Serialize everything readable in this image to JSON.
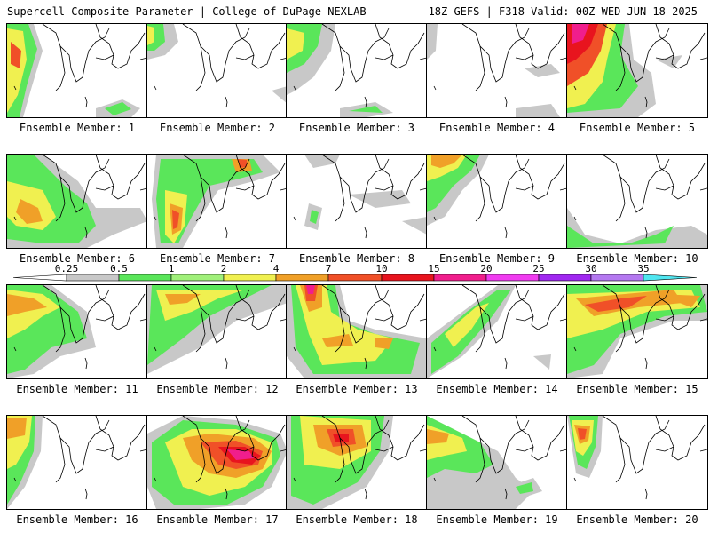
{
  "header": {
    "title_left": "Supercell Composite Parameter | College of DuPage NEXLAB",
    "title_right": "18Z GEFS | F318 Valid: 00Z WED JUN 18 2025"
  },
  "legend": {
    "ticks": [
      "0.25",
      "0.5",
      "1",
      "2",
      "4",
      "7",
      "10",
      "15",
      "20",
      "25",
      "30",
      "35"
    ],
    "colors": [
      "#c8c8c8",
      "#5ae65a",
      "#a0f07a",
      "#f0f050",
      "#f0a028",
      "#f05028",
      "#e8141e",
      "#f01e8c",
      "#f03cf0",
      "#a028f0",
      "#b478f0",
      "#50e6f0"
    ]
  },
  "panels": [
    {
      "label": "Ensemble Member: 1"
    },
    {
      "label": "Ensemble Member: 2"
    },
    {
      "label": "Ensemble Member: 3"
    },
    {
      "label": "Ensemble Member: 4"
    },
    {
      "label": "Ensemble Member: 5"
    },
    {
      "label": "Ensemble Member: 6"
    },
    {
      "label": "Ensemble Member: 7"
    },
    {
      "label": "Ensemble Member: 8"
    },
    {
      "label": "Ensemble Member: 9"
    },
    {
      "label": "Ensemble Member: 10"
    },
    {
      "label": "Ensemble Member: 11"
    },
    {
      "label": "Ensemble Member: 12"
    },
    {
      "label": "Ensemble Member: 13"
    },
    {
      "label": "Ensemble Member: 14"
    },
    {
      "label": "Ensemble Member: 15"
    },
    {
      "label": "Ensemble Member: 16"
    },
    {
      "label": "Ensemble Member: 17"
    },
    {
      "label": "Ensemble Member: 18"
    },
    {
      "label": "Ensemble Member: 19"
    },
    {
      "label": "Ensemble Member: 20"
    }
  ]
}
